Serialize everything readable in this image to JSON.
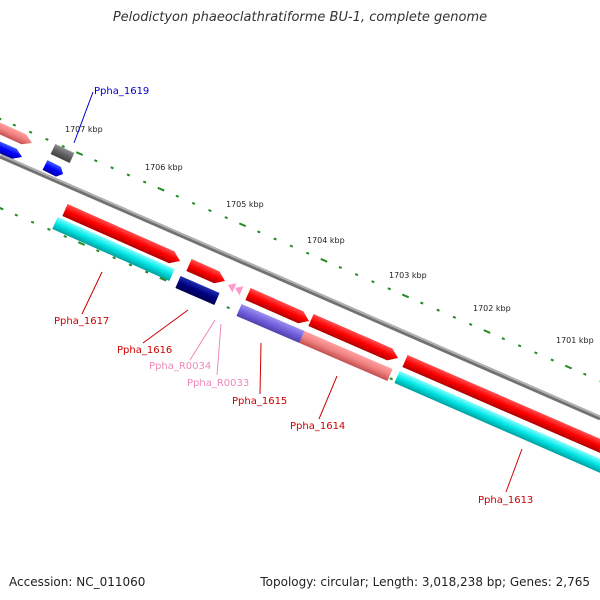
{
  "title": "Pelodictyon phaeoclathratiforme BU-1, complete genome",
  "footer": {
    "accession": "Accession: NC_011060",
    "topology": "Topology: circular; Length: 3,018,238 bp; Genes: 2,765"
  },
  "scale_labels": [
    "1707 kbp",
    "1706 kbp",
    "1705 kbp",
    "1704 kbp",
    "1703 kbp",
    "1702 kbp",
    "1701 kbp"
  ],
  "gene_labels": [
    {
      "text": "Ppha_1619",
      "color": "#0000cc"
    },
    {
      "text": "Ppha_1617",
      "color": "#cc0000"
    },
    {
      "text": "Ppha_1616",
      "color": "#cc0000"
    },
    {
      "text": "Ppha_R0034",
      "color": "#ee88bb"
    },
    {
      "text": "Ppha_R0033",
      "color": "#ee88bb"
    },
    {
      "text": "Ppha_1615",
      "color": "#cc0000"
    },
    {
      "text": "Ppha_1614",
      "color": "#cc0000"
    },
    {
      "text": "Ppha_1613",
      "color": "#cc0000"
    }
  ],
  "colors": {
    "backbone": "#808080",
    "ticks": "#228b22",
    "cds_red": "#ff0000",
    "cds_salmon": "#f08080",
    "cds_cyan": "#00e5e5",
    "cds_navy": "#000080",
    "cds_purple": "#7060dd",
    "cds_blue": "#0000ff",
    "cds_gray": "#606060",
    "rna_pink": "#ff99cc"
  }
}
